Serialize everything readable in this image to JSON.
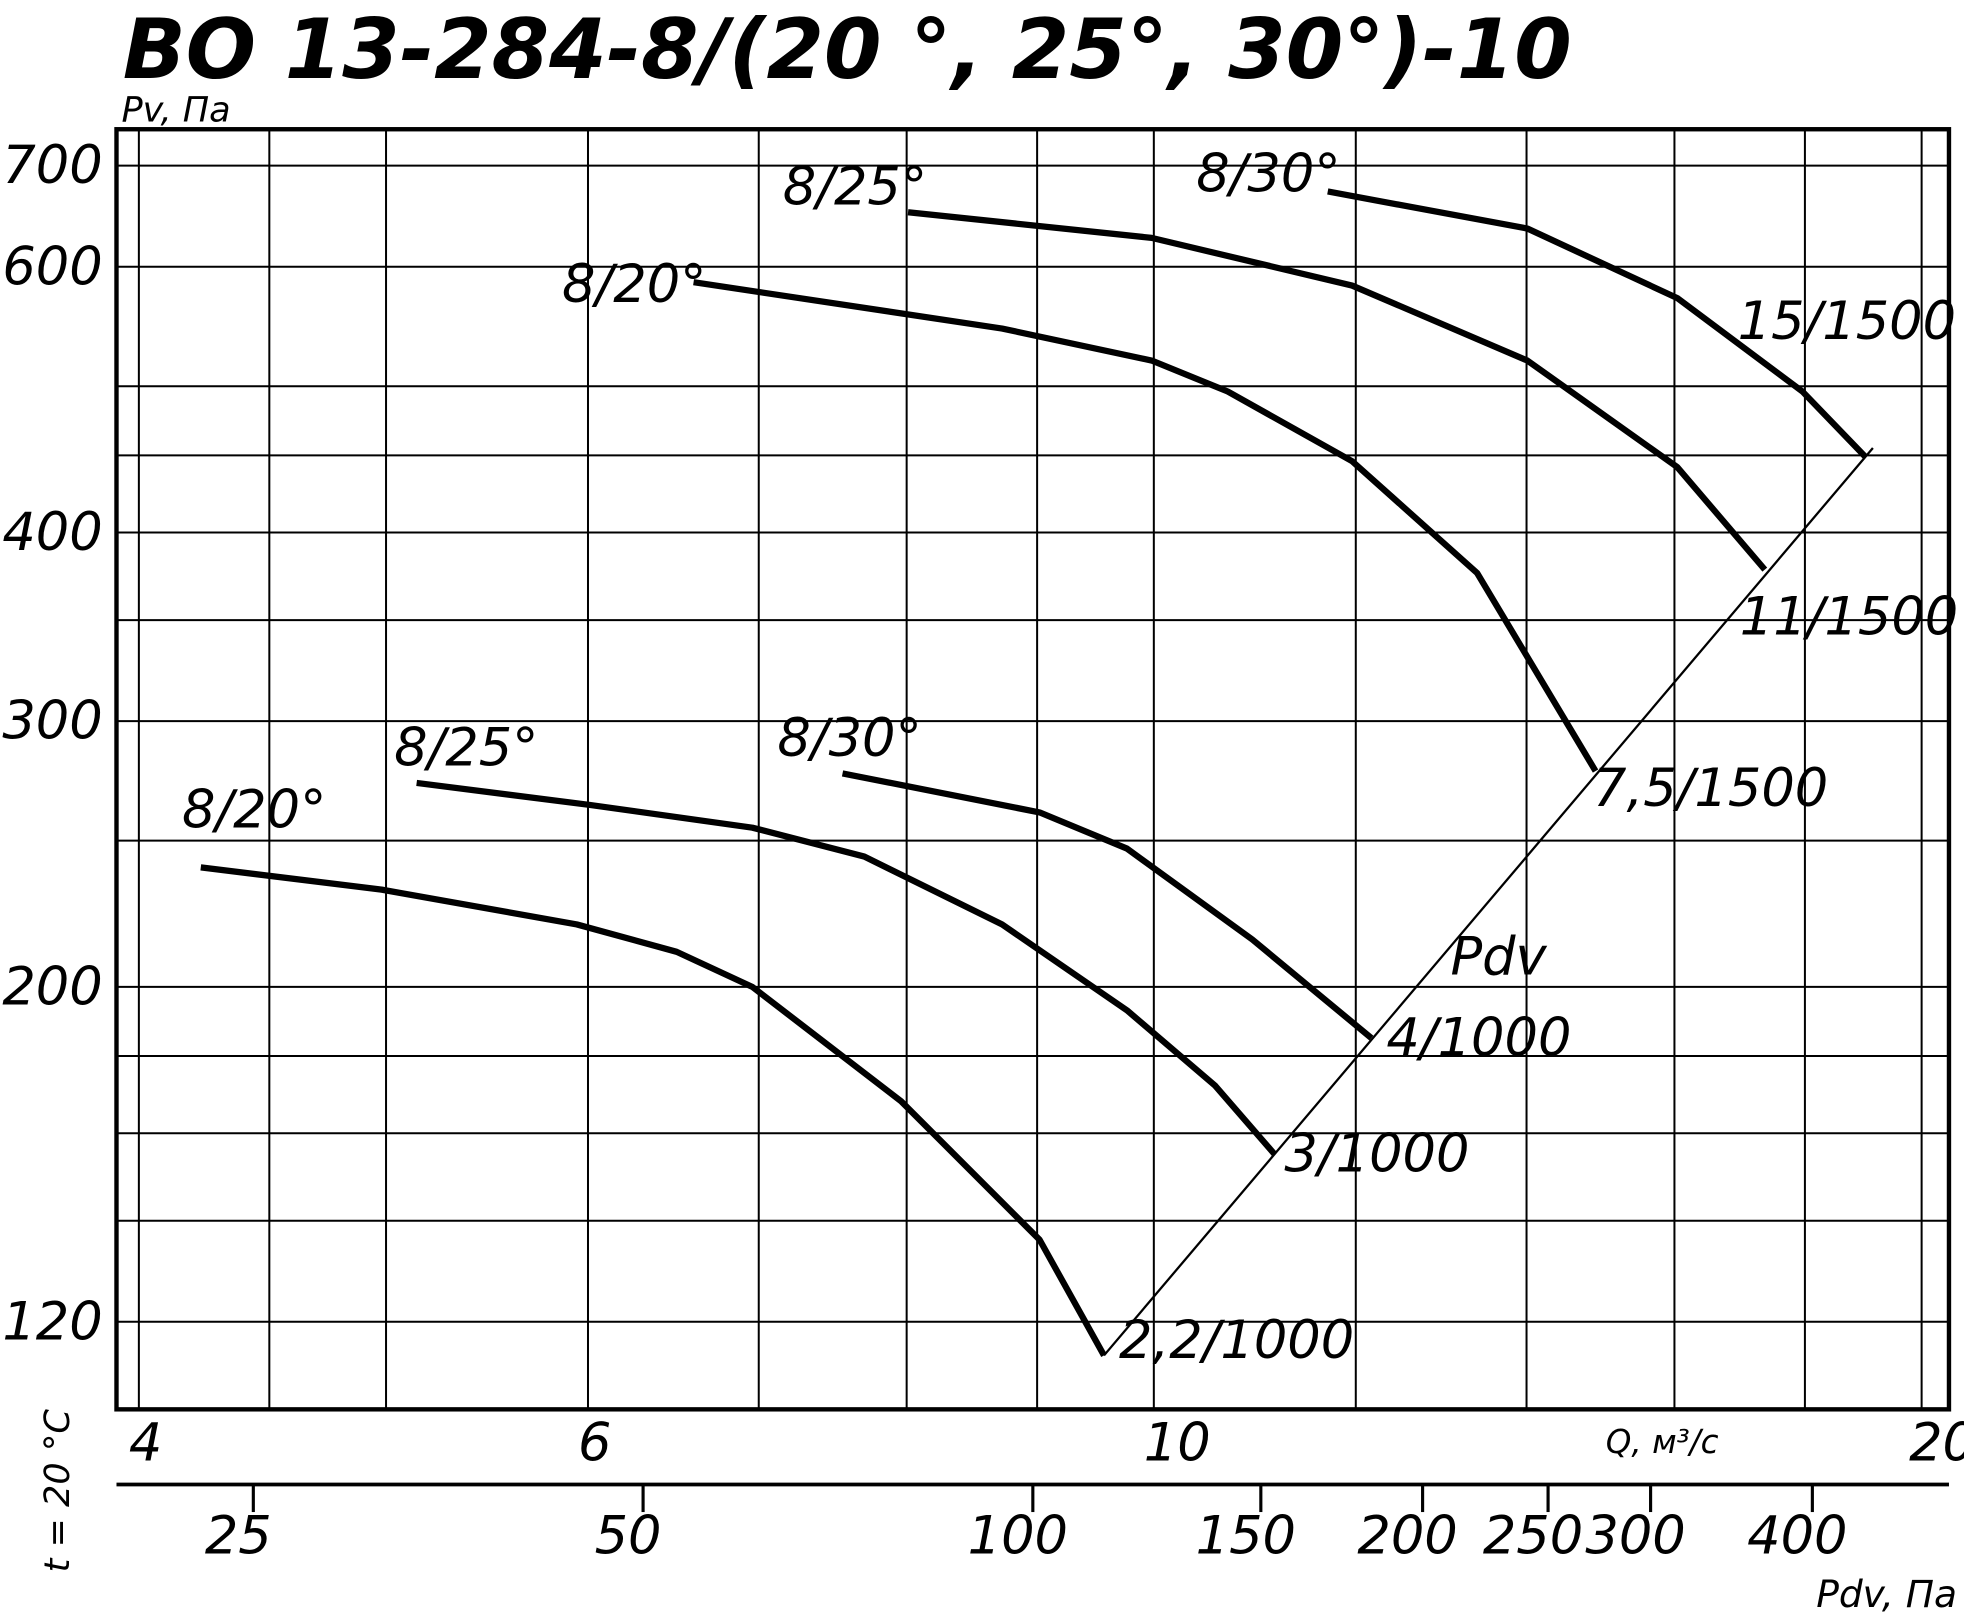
{
  "chart_data": {
    "type": "line",
    "title": "ВО 13-284-8/(20 °, 25°, 30°)-10",
    "y_label": "Pv, Па",
    "x_label": "Q, м³/с",
    "x2_label": "Pdv, Па",
    "pdv_label": "Pdv",
    "side_note": "t = 20 °C",
    "log_x": true,
    "log_y": true,
    "xlim": [
      3.92,
      20.5
    ],
    "ylim": [
      105,
      740
    ],
    "xticks": [
      4,
      6,
      10,
      20
    ],
    "yticks": [
      120,
      200,
      300,
      400,
      600,
      700
    ],
    "x_grid": [
      4.5,
      5,
      7,
      8,
      9,
      12,
      14,
      16,
      18
    ],
    "y_grid": [
      140,
      160,
      180,
      250,
      350,
      450,
      500
    ],
    "x2lim": [
      19.6,
      510
    ],
    "x2ticks": [
      25,
      50,
      100,
      150,
      200,
      250,
      300,
      400
    ],
    "series": [
      {
        "name": "8/20°",
        "end_label": "2,2/1000",
        "color": "#000000",
        "x": [
          4.23,
          4.98,
          5.94,
          6.5,
          6.96,
          7.96,
          9.02,
          9.56
        ],
        "values": [
          240,
          232,
          220,
          211,
          200,
          168,
          136,
          114
        ]
      },
      {
        "name": "8/25°",
        "end_label": "3/1000",
        "color": "#000000",
        "x": [
          5.14,
          6.01,
          6.96,
          7.7,
          8.72,
          9.76,
          10.57,
          11.15
        ],
        "values": [
          273,
          264,
          255,
          244,
          220,
          193,
          172,
          155
        ]
      },
      {
        "name": "8/30°",
        "end_label": "4/1000",
        "color": "#000000",
        "x": [
          7.55,
          9.02,
          9.76,
          10.93,
          12.17
        ],
        "values": [
          277,
          261,
          247,
          215,
          185
        ]
      },
      {
        "name": "8/20°",
        "end_label": "7,5/1500",
        "color": "#000000",
        "x": [
          6.6,
          8.72,
          9.98,
          10.69,
          11.96,
          13.39,
          14.9
        ],
        "values": [
          586,
          546,
          520,
          496,
          446,
          376,
          278
        ]
      },
      {
        "name": "8/25°",
        "end_label": "11/1500",
        "color": "#000000",
        "x": [
          8.01,
          9.98,
          11.96,
          14.01,
          16.04,
          17.36
        ],
        "values": [
          652,
          627,
          583,
          520,
          442,
          378
        ]
      },
      {
        "name": "8/30°",
        "end_label": "15/1500",
        "color": "#000000",
        "x": [
          11.7,
          14.01,
          16.04,
          17.96,
          19.01
        ],
        "values": [
          673,
          636,
          572,
          496,
          449
        ]
      }
    ]
  }
}
